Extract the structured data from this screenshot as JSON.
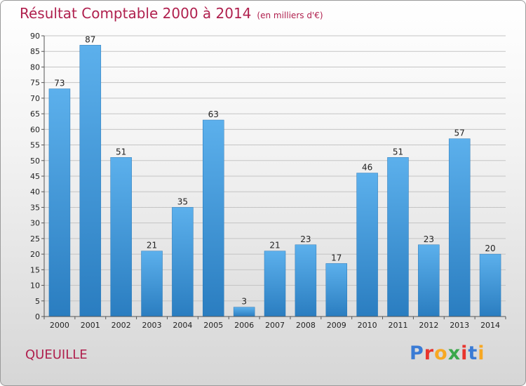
{
  "title": "Résultat Comptable 2000 à 2014",
  "subtitle": "(en milliers d'€)",
  "commune": "QUEUILLE",
  "logo": {
    "text": "Proxiti",
    "colors": [
      "#3a7bd5",
      "#e8342d",
      "#f7a823",
      "#3aa84a",
      "#e8342d",
      "#3a7bd5",
      "#f7a823"
    ]
  },
  "colors": {
    "title": "#b0204e",
    "bar_light": "#5aaeea",
    "bar_dark": "#2a7fc2"
  },
  "chart_data": {
    "type": "bar",
    "title": "Résultat Comptable 2000 à 2014",
    "xlabel": "",
    "ylabel": "en milliers d'€",
    "ylim": [
      0,
      90
    ],
    "ytick_step": 5,
    "grid": true,
    "categories": [
      "2000",
      "2001",
      "2002",
      "2003",
      "2004",
      "2005",
      "2006",
      "2007",
      "2008",
      "2009",
      "2010",
      "2011",
      "2012",
      "2013",
      "2014"
    ],
    "values": [
      73,
      87,
      51,
      21,
      35,
      63,
      3,
      21,
      23,
      17,
      46,
      51,
      23,
      57,
      20
    ]
  }
}
